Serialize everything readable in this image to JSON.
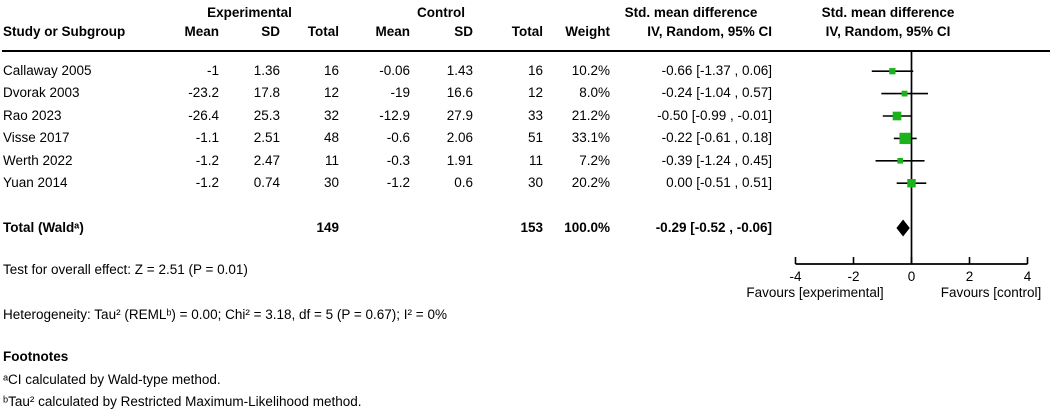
{
  "table": {
    "groups": {
      "experimental": "Experimental",
      "control": "Control",
      "smd_text": "Std. mean difference",
      "smd_plot": "Std. mean difference"
    },
    "cols": {
      "study": "Study or Subgroup",
      "mean": "Mean",
      "sd": "SD",
      "total": "Total",
      "weight": "Weight",
      "iv": "IV, Random, 95% CI"
    },
    "studies": [
      {
        "study": "Callaway 2005",
        "mean_e": "-1",
        "sd_e": "1.36",
        "n_e": "16",
        "mean_c": "-0.06",
        "sd_c": "1.43",
        "n_c": "16",
        "weight": "10.2%",
        "smd_ci": "-0.66 [-1.37 , 0.06]"
      },
      {
        "study": "Dvorak 2003",
        "mean_e": "-23.2",
        "sd_e": "17.8",
        "n_e": "12",
        "mean_c": "-19",
        "sd_c": "16.6",
        "n_c": "12",
        "weight": "8.0%",
        "smd_ci": "-0.24 [-1.04 , 0.57]"
      },
      {
        "study": "Rao 2023",
        "mean_e": "-26.4",
        "sd_e": "25.3",
        "n_e": "32",
        "mean_c": "-12.9",
        "sd_c": "27.9",
        "n_c": "33",
        "weight": "21.2%",
        "smd_ci": "-0.50 [-0.99 , -0.01]"
      },
      {
        "study": "Visse 2017",
        "mean_e": "-1.1",
        "sd_e": "2.51",
        "n_e": "48",
        "mean_c": "-0.6",
        "sd_c": "2.06",
        "n_c": "51",
        "weight": "33.1%",
        "smd_ci": "-0.22 [-0.61 , 0.18]"
      },
      {
        "study": "Werth 2022",
        "mean_e": "-1.2",
        "sd_e": "2.47",
        "n_e": "11",
        "mean_c": "-0.3",
        "sd_c": "1.91",
        "n_c": "11",
        "weight": "7.2%",
        "smd_ci": "-0.39 [-1.24 , 0.45]"
      },
      {
        "study": "Yuan 2014",
        "mean_e": "-1.2",
        "sd_e": "0.74",
        "n_e": "30",
        "mean_c": "-1.2",
        "sd_c": "0.6",
        "n_c": "30",
        "weight": "20.2%",
        "smd_ci": "0.00 [-0.51 , 0.51]"
      }
    ],
    "total": {
      "study": "Total (Waldᵃ)",
      "n_e": "149",
      "n_c": "153",
      "weight": "100.0%",
      "smd_ci": "-0.29 [-0.52 , -0.06]"
    }
  },
  "stats": {
    "overall_effect": "Test for overall effect: Z = 2.51 (P = 0.01)",
    "heterogeneity": "Heterogeneity: Tau² (REMLᵇ) = 0.00; Chi² = 3.18, df = 5 (P = 0.67); I² = 0%"
  },
  "footnotes": {
    "title": "Footnotes",
    "line_a": "ᵃCI calculated by Wald-type method.",
    "line_b": "ᵇTau² calculated by Restricted Maximum-Likelihood method."
  },
  "chart_data": {
    "type": "scatter",
    "subtype": "forest-plot",
    "title": "Std. mean difference, IV, Random, 95% CI",
    "series": [
      {
        "name": "Std. mean difference (IV, Random, 95% CI)",
        "points": [
          {
            "study": "Callaway 2005",
            "est": -0.66,
            "lo": -1.37,
            "hi": 0.06,
            "weight_pct": 10.2
          },
          {
            "study": "Dvorak 2003",
            "est": -0.24,
            "lo": -1.04,
            "hi": 0.57,
            "weight_pct": 8.0
          },
          {
            "study": "Rao 2023",
            "est": -0.5,
            "lo": -0.99,
            "hi": -0.01,
            "weight_pct": 21.2
          },
          {
            "study": "Visse 2017",
            "est": -0.22,
            "lo": -0.61,
            "hi": 0.18,
            "weight_pct": 33.1
          },
          {
            "study": "Werth 2022",
            "est": -0.39,
            "lo": -1.24,
            "hi": 0.45,
            "weight_pct": 7.2
          },
          {
            "study": "Yuan 2014",
            "est": 0.0,
            "lo": -0.51,
            "hi": 0.51,
            "weight_pct": 20.2
          }
        ]
      }
    ],
    "summary": {
      "label": "Total (Waldᵃ)",
      "est": -0.29,
      "lo": -0.52,
      "hi": -0.06,
      "weight_pct": 100.0
    },
    "xlim": [
      -4,
      4
    ],
    "xticks": [
      "-4",
      "-2",
      "0",
      "2",
      "4"
    ],
    "xtick_values": [
      -4,
      -2,
      0,
      2,
      4
    ],
    "x_axis_left_label": "Favours [experimental]",
    "x_axis_right_label": "Favours [control]",
    "grid": false,
    "marker_color": "#1cb21c",
    "summary_color": "#000000",
    "line_color": "#000000"
  }
}
